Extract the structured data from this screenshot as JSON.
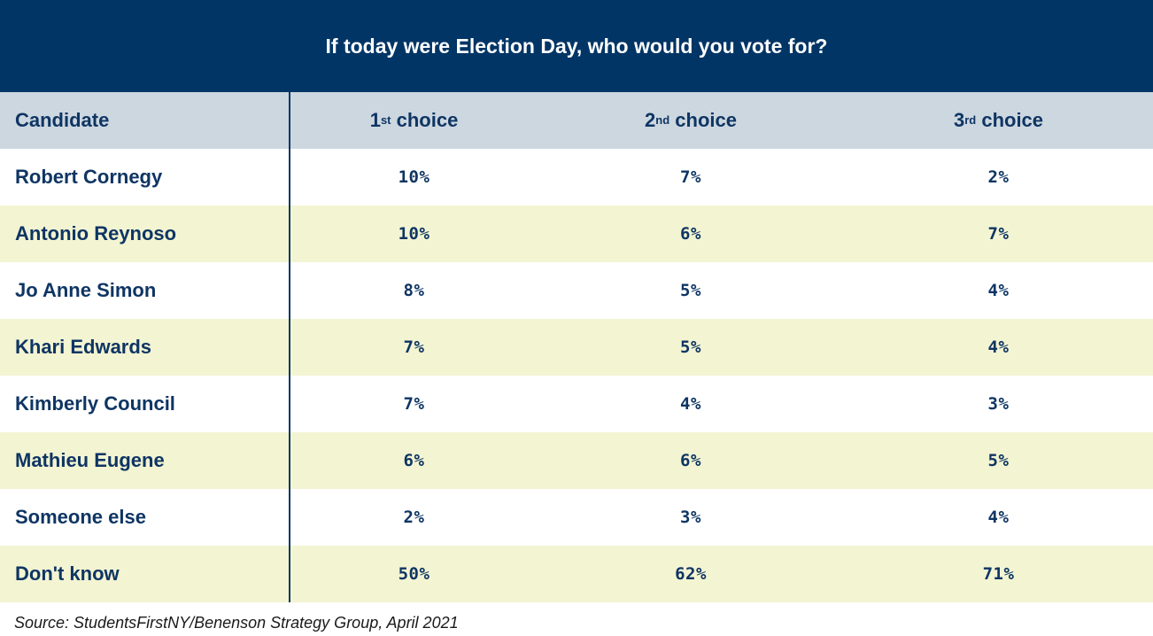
{
  "chart_data": {
    "type": "table",
    "title": "If today were Election Day, who would you vote for?",
    "columns": [
      {
        "key": "candidate",
        "label": "Candidate"
      },
      {
        "key": "first",
        "prefix": "1",
        "suffix": "st",
        "rest": " choice"
      },
      {
        "key": "second",
        "prefix": "2",
        "suffix": "nd",
        "rest": " choice"
      },
      {
        "key": "third",
        "prefix": "3",
        "suffix": "rd",
        "rest": " choice"
      }
    ],
    "rows": [
      {
        "candidate": "Robert Cornegy",
        "first": "10%",
        "second": "7%",
        "third": "2%"
      },
      {
        "candidate": "Antonio Reynoso",
        "first": "10%",
        "second": "6%",
        "third": "7%"
      },
      {
        "candidate": "Jo Anne Simon",
        "first": "8%",
        "second": "5%",
        "third": "4%"
      },
      {
        "candidate": "Khari Edwards",
        "first": "7%",
        "second": "5%",
        "third": "4%"
      },
      {
        "candidate": "Kimberly Council",
        "first": "7%",
        "second": "4%",
        "third": "3%"
      },
      {
        "candidate": "Mathieu Eugene",
        "first": "6%",
        "second": "6%",
        "third": "5%"
      },
      {
        "candidate": "Someone else",
        "first": "2%",
        "second": "3%",
        "third": "4%"
      },
      {
        "candidate": "Don't know",
        "first": "50%",
        "second": "62%",
        "third": "71%"
      }
    ],
    "source": "Source: StudentsFirstNY/Benenson Strategy Group, April 2021"
  },
  "colors": {
    "title_bg": "#003566",
    "header_bg": "#cdd7e0",
    "stripe_bg": "#f3f4d2",
    "text": "#0e3563"
  }
}
